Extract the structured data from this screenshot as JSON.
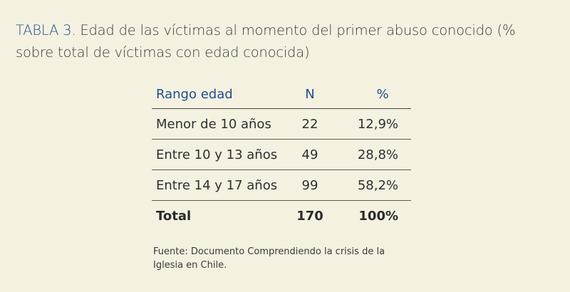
{
  "title": {
    "label": "TABLA 3.",
    "text": "Edad de las víctimas al momento del primer abuso conocido (% sobre total de víctimas con edad conocida)"
  },
  "table": {
    "headers": [
      "Rango edad",
      "N",
      "%"
    ],
    "rows": [
      [
        "Menor de 10 años",
        "22",
        "12,9%"
      ],
      [
        "Entre 10 y 13 años",
        "49",
        "28,8%"
      ],
      [
        "Entre 14 y 17 años",
        "99",
        "58,2%"
      ]
    ],
    "total": [
      "Total",
      "170",
      "100%"
    ]
  },
  "source": "Fuente: Documento Comprendiendo la crisis de la Iglesia en Chile."
}
